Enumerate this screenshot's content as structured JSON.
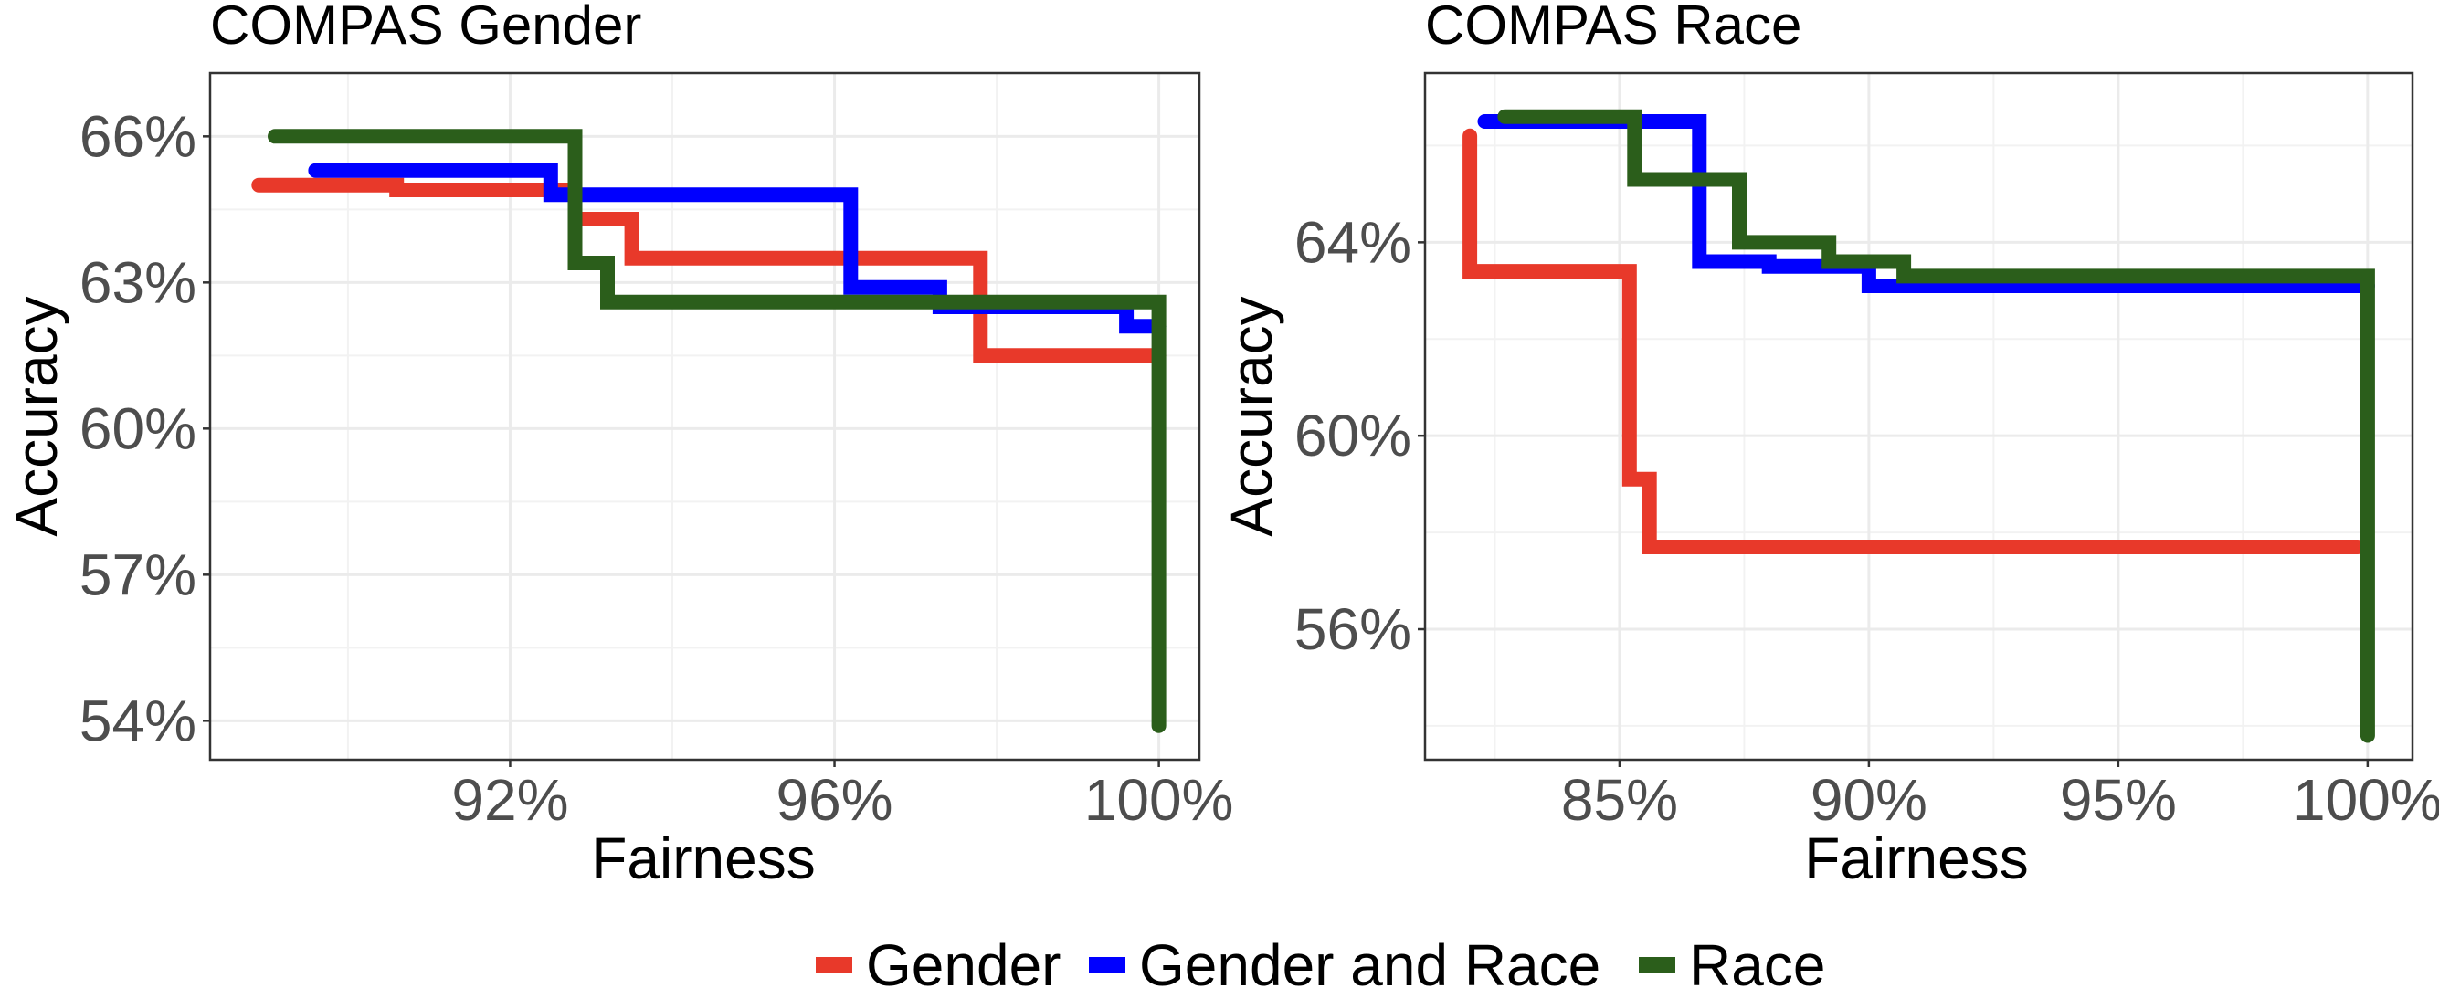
{
  "legend": {
    "items": [
      {
        "name": "Gender",
        "color": "#E8392A"
      },
      {
        "name": "Gender and Race",
        "color": "#0000FF"
      },
      {
        "name": "Race",
        "color": "#2B5E1B"
      }
    ]
  },
  "chart_data": [
    {
      "type": "line",
      "title": "COMPAS Gender",
      "xlabel": "Fairness",
      "ylabel": "Accuracy",
      "xlim": [
        88.3,
        100.5
      ],
      "ylim": [
        53.2,
        67.3
      ],
      "x_ticks": [
        92,
        96,
        100
      ],
      "x_tick_labels": [
        "92%",
        "96%",
        "100%"
      ],
      "y_ticks": [
        54,
        57,
        60,
        63,
        66
      ],
      "y_tick_labels": [
        "54%",
        "57%",
        "60%",
        "63%",
        "66%"
      ],
      "grid": true,
      "legend_position": "bottom",
      "series": [
        {
          "name": "Gender",
          "color": "#E8392A",
          "x": [
            88.9,
            90.6,
            90.6,
            92.8,
            92.8,
            93.5,
            93.5,
            97.8,
            97.8,
            100.0
          ],
          "y": [
            65.0,
            65.0,
            64.9,
            64.9,
            64.3,
            64.3,
            63.5,
            63.5,
            61.5,
            61.5
          ]
        },
        {
          "name": "Gender and Race",
          "color": "#0000FF",
          "x": [
            89.6,
            92.5,
            92.5,
            96.2,
            96.2,
            97.3,
            97.3,
            99.6,
            99.6,
            100.0
          ],
          "y": [
            65.3,
            65.3,
            64.8,
            64.8,
            62.9,
            62.9,
            62.5,
            62.5,
            62.1,
            62.1
          ]
        },
        {
          "name": "Race",
          "color": "#2B5E1B",
          "x": [
            89.1,
            92.8,
            92.8,
            93.2,
            93.2,
            100.0,
            100.0
          ],
          "y": [
            66.0,
            66.0,
            63.4,
            63.4,
            62.6,
            62.6,
            53.9
          ]
        }
      ]
    },
    {
      "type": "line",
      "title": "COMPAS Race",
      "xlabel": "Fairness",
      "ylabel": "Accuracy",
      "xlim": [
        81.1,
        100.9
      ],
      "ylim": [
        53.3,
        67.5
      ],
      "x_ticks": [
        85,
        90,
        95,
        100
      ],
      "x_tick_labels": [
        "85%",
        "90%",
        "95%",
        "100%"
      ],
      "y_ticks": [
        56,
        60,
        64
      ],
      "y_tick_labels": [
        "56%",
        "60%",
        "64%"
      ],
      "grid": true,
      "legend_position": "bottom",
      "series": [
        {
          "name": "Gender",
          "color": "#E8392A",
          "x": [
            82.0,
            82.0,
            85.2,
            85.2,
            85.6,
            85.6,
            99.8
          ],
          "y": [
            66.2,
            63.4,
            63.4,
            59.1,
            59.1,
            57.7,
            57.7
          ]
        },
        {
          "name": "Gender and Race",
          "color": "#0000FF",
          "x": [
            82.3,
            86.6,
            86.6,
            88.0,
            88.0,
            90.0,
            90.0,
            100.0
          ],
          "y": [
            66.5,
            66.5,
            63.6,
            63.6,
            63.5,
            63.5,
            63.1,
            63.1
          ]
        },
        {
          "name": "Race",
          "color": "#2B5E1B",
          "x": [
            82.7,
            85.3,
            85.3,
            87.4,
            87.4,
            89.2,
            89.2,
            90.7,
            90.7,
            100.0,
            100.0
          ],
          "y": [
            66.6,
            66.6,
            65.3,
            65.3,
            64.0,
            64.0,
            63.6,
            63.6,
            63.3,
            63.3,
            53.8
          ]
        }
      ]
    }
  ]
}
